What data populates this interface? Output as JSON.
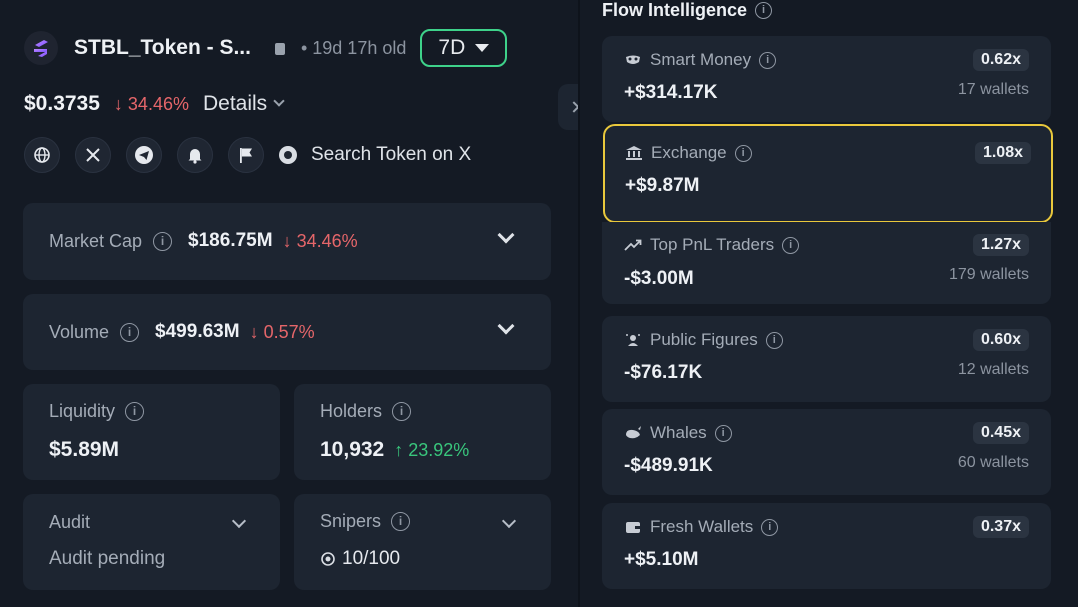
{
  "token": {
    "name": "STBL_Token - S...",
    "age": "• 19d 17h old",
    "range": "7D",
    "price": "$0.3735",
    "price_change": "↓ 34.46%",
    "details_label": "Details",
    "search_label": "Search Token on X"
  },
  "stats": {
    "market_cap": {
      "label": "Market Cap",
      "value": "$186.75M",
      "change": "↓ 34.46%"
    },
    "volume": {
      "label": "Volume",
      "value": "$499.63M",
      "change": "↓ 0.57%"
    },
    "liquidity": {
      "label": "Liquidity",
      "value": "$5.89M"
    },
    "holders": {
      "label": "Holders",
      "value": "10,932",
      "change": "↑ 23.92%"
    },
    "audit": {
      "label": "Audit",
      "value": "Audit pending"
    },
    "snipers": {
      "label": "Snipers",
      "value": "10/100"
    }
  },
  "flow": {
    "title": "Flow Intelligence",
    "items": [
      {
        "label": "Smart Money",
        "icon": "mask-icon",
        "badge": "0.62x",
        "value": "+$314.17K",
        "wallets": "17 wallets"
      },
      {
        "label": "Exchange",
        "icon": "bank-icon",
        "badge": "1.08x",
        "value": "+$9.87M",
        "wallets": ""
      },
      {
        "label": "Top PnL Traders",
        "icon": "trend-up-icon",
        "badge": "1.27x",
        "value": "-$3.00M",
        "wallets": "179 wallets"
      },
      {
        "label": "Public Figures",
        "icon": "star-person-icon",
        "badge": "0.60x",
        "value": "-$76.17K",
        "wallets": "12 wallets"
      },
      {
        "label": "Whales",
        "icon": "whale-icon",
        "badge": "0.45x",
        "value": "-$489.91K",
        "wallets": "60 wallets"
      },
      {
        "label": "Fresh Wallets",
        "icon": "wallet-icon",
        "badge": "0.37x",
        "value": "+$5.10M",
        "wallets": ""
      }
    ]
  },
  "colors": {
    "accent_green": "#3ed28a",
    "down_red": "#e5666a",
    "up_green": "#39c57c",
    "highlight": "#e9c83c"
  }
}
